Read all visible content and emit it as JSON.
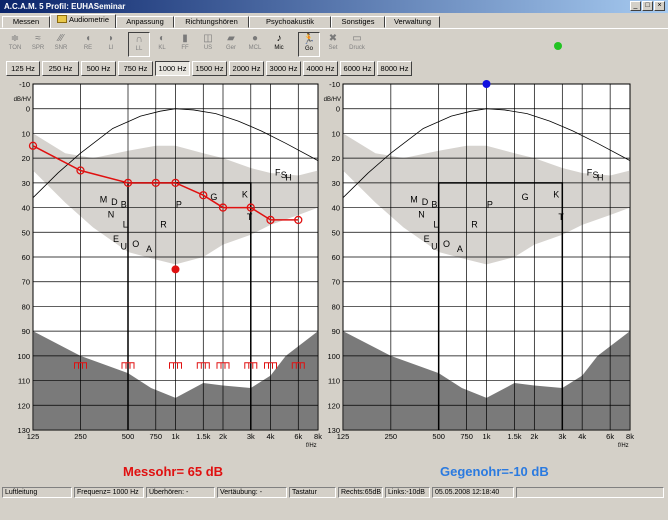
{
  "window": {
    "title": "A.C.A.M. 5  Profil: EUHASeminar",
    "minimize": "_",
    "maximize": "□",
    "close": "×"
  },
  "tabs": [
    "Messen",
    "Audiometrie",
    "Anpassung",
    "Richtungshören",
    "Psychoakustik",
    "Sonstiges",
    "Verwaltung"
  ],
  "toolbar": [
    {
      "label": "TON",
      "icon": "tone-icon",
      "glyph": "≑",
      "enabled": false
    },
    {
      "label": "SPR",
      "icon": "speech-icon",
      "glyph": "≈",
      "enabled": false
    },
    {
      "label": "SNR",
      "icon": "snr-icon",
      "glyph": "∕∕∕",
      "enabled": false
    },
    {
      "label": "RE",
      "icon": "right-ear-icon",
      "glyph": "◖",
      "enabled": false
    },
    {
      "label": "LI",
      "icon": "left-ear-icon",
      "glyph": "◗",
      "enabled": false
    },
    {
      "label": "LL",
      "icon": "headphones-icon",
      "glyph": "∩",
      "enabled": false,
      "pressed": true
    },
    {
      "label": "KL",
      "icon": "bone-conductor-icon",
      "glyph": "◐",
      "enabled": false
    },
    {
      "label": "FF",
      "icon": "free-field-icon",
      "glyph": "▮",
      "enabled": false
    },
    {
      "label": "US",
      "icon": "insert-icon",
      "glyph": "◫",
      "enabled": false
    },
    {
      "label": "Ger",
      "icon": "device-icon",
      "glyph": "▰",
      "enabled": false
    },
    {
      "label": "MCL",
      "icon": "mcl-icon",
      "glyph": "●",
      "enabled": false
    },
    {
      "label": "Mic",
      "icon": "microphone-icon",
      "glyph": "♪",
      "enabled": true
    },
    {
      "label": "Go",
      "icon": "go-icon",
      "glyph": "🏃",
      "enabled": true,
      "pressed": true
    },
    {
      "label": "Set",
      "icon": "settings-icon",
      "glyph": "✖",
      "enabled": false
    },
    {
      "label": "Druck",
      "icon": "print-icon",
      "glyph": "▭",
      "enabled": false
    }
  ],
  "status_indicator_color": "#22c322",
  "freq_buttons": [
    "125 Hz",
    "250 Hz",
    "500 Hz",
    "750 Hz",
    "1000 Hz",
    "1500 Hz",
    "2000 Hz",
    "3000 Hz",
    "4000 Hz",
    "6000 Hz",
    "8000 Hz"
  ],
  "active_freq": "1000 Hz",
  "chart_data": [
    {
      "type": "line",
      "ear": "Messohr",
      "xlabel": "f/Hz",
      "ylabel": "dB/HV",
      "x_scale": "log",
      "y_inverted": true,
      "xlim": [
        125,
        8000
      ],
      "ylim": [
        -10,
        130
      ],
      "x_ticks": [
        125,
        250,
        500,
        750,
        1000,
        1500,
        2000,
        3000,
        4000,
        6000,
        8000
      ],
      "x_tick_labels": [
        "125",
        "250",
        "500",
        "750",
        "1k",
        "1.5k",
        "2k",
        "3k",
        "4k",
        "6k",
        "8k"
      ],
      "y_ticks": [
        -10,
        0,
        10,
        20,
        30,
        40,
        50,
        60,
        70,
        80,
        90,
        100,
        110,
        120,
        130
      ],
      "series_color": "#e01010",
      "series": [
        {
          "x": [
            125,
            250,
            500,
            750,
            1000,
            1500,
            2000,
            3000,
            4000,
            6000
          ],
          "y": [
            15,
            25,
            30,
            30,
            30,
            35,
            40,
            40,
            45,
            45
          ]
        }
      ],
      "extra_point": {
        "x": 1000,
        "y": 65
      },
      "ucl_markers_x": [
        250,
        500,
        1000,
        1500,
        2000,
        3000,
        4000,
        6000
      ],
      "ucl_marker_level": 104,
      "phonemes": [
        {
          "t": "M",
          "x": 350,
          "y": 38
        },
        {
          "t": "D",
          "x": 410,
          "y": 39
        },
        {
          "t": "B",
          "x": 470,
          "y": 40
        },
        {
          "t": "N",
          "x": 390,
          "y": 44
        },
        {
          "t": "L",
          "x": 480,
          "y": 48
        },
        {
          "t": "R",
          "x": 840,
          "y": 48
        },
        {
          "t": "E",
          "x": 420,
          "y": 54
        },
        {
          "t": "O",
          "x": 560,
          "y": 56
        },
        {
          "t": "U",
          "x": 470,
          "y": 57
        },
        {
          "t": "A",
          "x": 680,
          "y": 58
        },
        {
          "t": "P",
          "x": 1050,
          "y": 40
        },
        {
          "t": "G",
          "x": 1750,
          "y": 37
        },
        {
          "t": "K",
          "x": 2750,
          "y": 36
        },
        {
          "t": "T",
          "x": 2950,
          "y": 45
        },
        {
          "t": "F",
          "x": 4450,
          "y": 27
        },
        {
          "t": "S",
          "x": 4850,
          "y": 28
        },
        {
          "t": "H",
          "x": 5200,
          "y": 29
        }
      ],
      "speech_banana_top": [
        [
          125,
          10
        ],
        [
          200,
          18
        ],
        [
          300,
          20
        ],
        [
          500,
          17
        ],
        [
          750,
          15
        ],
        [
          1000,
          15
        ],
        [
          1500,
          18
        ],
        [
          2000,
          20
        ],
        [
          3000,
          24
        ],
        [
          4000,
          26
        ],
        [
          6000,
          27
        ],
        [
          8000,
          25
        ]
      ],
      "speech_banana_bottom": [
        [
          125,
          25
        ],
        [
          200,
          38
        ],
        [
          300,
          48
        ],
        [
          500,
          58
        ],
        [
          750,
          61
        ],
        [
          1000,
          63
        ],
        [
          1500,
          60
        ],
        [
          2000,
          55
        ],
        [
          3000,
          51
        ],
        [
          4000,
          47
        ],
        [
          6000,
          43
        ],
        [
          8000,
          40
        ]
      ],
      "threshold_curve": [
        [
          125,
          36
        ],
        [
          180,
          26
        ],
        [
          250,
          18
        ],
        [
          400,
          8
        ],
        [
          600,
          3
        ],
        [
          800,
          1
        ],
        [
          1000,
          0
        ],
        [
          1300,
          0.5
        ],
        [
          1800,
          2
        ],
        [
          2500,
          5
        ],
        [
          3500,
          9
        ],
        [
          5000,
          14
        ],
        [
          8000,
          21
        ]
      ],
      "discomfort_top": [
        [
          125,
          90
        ],
        [
          250,
          100
        ],
        [
          500,
          107
        ],
        [
          700,
          113
        ],
        [
          1000,
          117
        ],
        [
          1500,
          111
        ],
        [
          2000,
          112
        ],
        [
          3000,
          113
        ],
        [
          4000,
          108
        ],
        [
          5000,
          100
        ],
        [
          8000,
          90
        ]
      ],
      "hl_box": {
        "x1": 500,
        "x2": 3000,
        "y": 30,
        "xmid": 3000
      }
    },
    {
      "type": "line",
      "ear": "Gegenohr",
      "xlabel": "f/Hz",
      "ylabel": "dB/HV",
      "x_scale": "log",
      "y_inverted": true,
      "xlim": [
        125,
        8000
      ],
      "ylim": [
        -10,
        130
      ],
      "x_ticks": [
        125,
        250,
        500,
        750,
        1000,
        1500,
        2000,
        3000,
        4000,
        6000,
        8000
      ],
      "x_tick_labels": [
        "125",
        "250",
        "500",
        "750",
        "1k",
        "1.5k",
        "2k",
        "3k",
        "4k",
        "6k",
        "8k"
      ],
      "y_ticks": [
        -10,
        0,
        10,
        20,
        30,
        40,
        50,
        60,
        70,
        80,
        90,
        100,
        110,
        120,
        130
      ],
      "series_color": "#1010e0",
      "series": [],
      "extra_point": {
        "x": 1000,
        "y": -10
      },
      "ucl_markers_x": [],
      "ucl_marker_level": 104,
      "phonemes": [
        {
          "t": "M",
          "x": 350,
          "y": 38
        },
        {
          "t": "D",
          "x": 410,
          "y": 39
        },
        {
          "t": "B",
          "x": 470,
          "y": 40
        },
        {
          "t": "N",
          "x": 390,
          "y": 44
        },
        {
          "t": "L",
          "x": 480,
          "y": 48
        },
        {
          "t": "R",
          "x": 840,
          "y": 48
        },
        {
          "t": "E",
          "x": 420,
          "y": 54
        },
        {
          "t": "O",
          "x": 560,
          "y": 56
        },
        {
          "t": "U",
          "x": 470,
          "y": 57
        },
        {
          "t": "A",
          "x": 680,
          "y": 58
        },
        {
          "t": "P",
          "x": 1050,
          "y": 40
        },
        {
          "t": "G",
          "x": 1750,
          "y": 37
        },
        {
          "t": "K",
          "x": 2750,
          "y": 36
        },
        {
          "t": "T",
          "x": 2950,
          "y": 45
        },
        {
          "t": "F",
          "x": 4450,
          "y": 27
        },
        {
          "t": "S",
          "x": 4850,
          "y": 28
        },
        {
          "t": "H",
          "x": 5200,
          "y": 29
        }
      ],
      "speech_banana_top": [
        [
          125,
          10
        ],
        [
          200,
          18
        ],
        [
          300,
          20
        ],
        [
          500,
          17
        ],
        [
          750,
          15
        ],
        [
          1000,
          15
        ],
        [
          1500,
          18
        ],
        [
          2000,
          20
        ],
        [
          3000,
          24
        ],
        [
          4000,
          26
        ],
        [
          6000,
          27
        ],
        [
          8000,
          25
        ]
      ],
      "speech_banana_bottom": [
        [
          125,
          25
        ],
        [
          200,
          38
        ],
        [
          300,
          48
        ],
        [
          500,
          58
        ],
        [
          750,
          61
        ],
        [
          1000,
          63
        ],
        [
          1500,
          60
        ],
        [
          2000,
          55
        ],
        [
          3000,
          51
        ],
        [
          4000,
          47
        ],
        [
          6000,
          43
        ],
        [
          8000,
          40
        ]
      ],
      "threshold_curve": [
        [
          125,
          36
        ],
        [
          180,
          26
        ],
        [
          250,
          18
        ],
        [
          400,
          8
        ],
        [
          600,
          3
        ],
        [
          800,
          1
        ],
        [
          1000,
          0
        ],
        [
          1300,
          0.5
        ],
        [
          1800,
          2
        ],
        [
          2500,
          5
        ],
        [
          3500,
          9
        ],
        [
          5000,
          14
        ],
        [
          8000,
          21
        ]
      ],
      "discomfort_top": [
        [
          125,
          90
        ],
        [
          250,
          100
        ],
        [
          500,
          107
        ],
        [
          700,
          113
        ],
        [
          1000,
          117
        ],
        [
          1500,
          111
        ],
        [
          2000,
          112
        ],
        [
          3000,
          113
        ],
        [
          4000,
          108
        ],
        [
          5000,
          100
        ],
        [
          8000,
          90
        ]
      ],
      "hl_box": {
        "x1": 500,
        "x2": 3000,
        "y": 30,
        "xmid": 3000
      }
    }
  ],
  "messohr_label": "Messohr= 65 dB",
  "messohr_color": "#e01010",
  "gegenohr_label": "Gegenohr=-10 dB",
  "gegenohr_color": "#2a7ae0",
  "status": [
    "Luftleitung",
    "Frequenz= 1000 Hz",
    "Überhören: -",
    "Vertäubung: -",
    "Tastatur",
    "Rechts:65dB",
    "Links:-10dB",
    "05.05.2008 12:18:40"
  ]
}
